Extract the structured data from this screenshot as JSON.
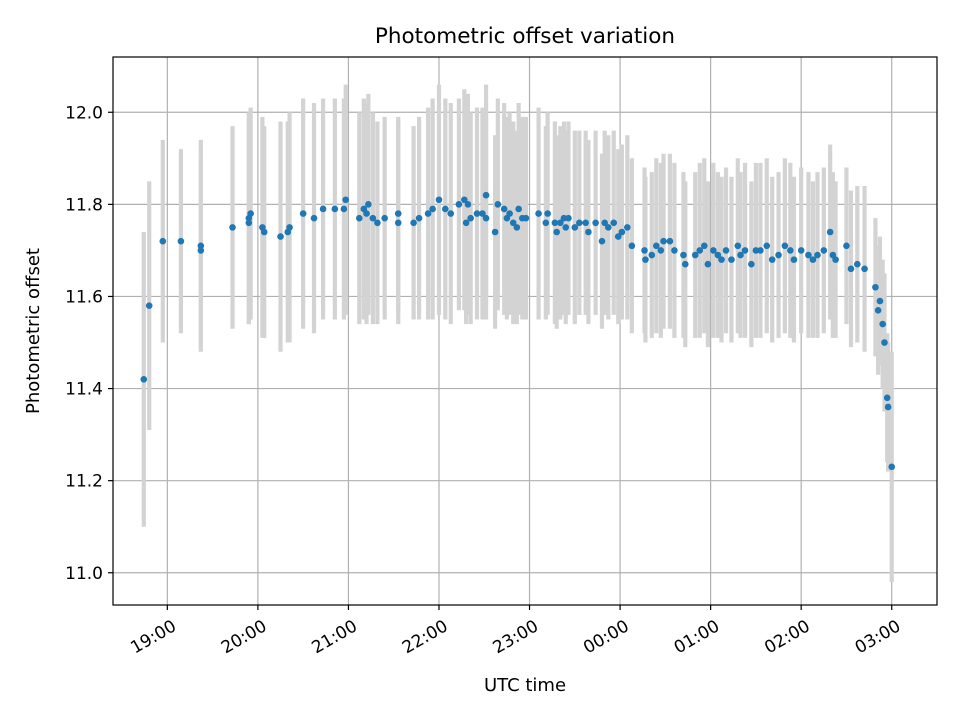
{
  "chart_data": {
    "type": "scatter",
    "title": "Photometric offset variation",
    "xlabel": "UTC time",
    "ylabel": "Photometric offset",
    "x_axis": {
      "unit": "hours since 18:00 UTC",
      "range": [
        0.4,
        9.5
      ],
      "ticks": [
        {
          "x": 1,
          "label": "19:00"
        },
        {
          "x": 2,
          "label": "20:00"
        },
        {
          "x": 3,
          "label": "21:00"
        },
        {
          "x": 4,
          "label": "22:00"
        },
        {
          "x": 5,
          "label": "23:00"
        },
        {
          "x": 6,
          "label": "00:00"
        },
        {
          "x": 7,
          "label": "01:00"
        },
        {
          "x": 8,
          "label": "02:00"
        },
        {
          "x": 9,
          "label": "03:00"
        }
      ]
    },
    "y_axis": {
      "range": [
        10.93,
        12.12
      ],
      "ticks": [
        {
          "y": 11.0,
          "label": "11.0"
        },
        {
          "y": 11.2,
          "label": "11.2"
        },
        {
          "y": 11.4,
          "label": "11.4"
        },
        {
          "y": 11.6,
          "label": "11.6"
        },
        {
          "y": 11.8,
          "label": "11.8"
        },
        {
          "y": 12.0,
          "label": "12.0"
        }
      ]
    },
    "grid": true,
    "colors": {
      "points": "#1f77b4",
      "errorbars": "#d3d3d3",
      "grid": "#b0b0b0"
    },
    "points": [
      {
        "x": 0.74,
        "y": 11.42,
        "err": 0.32
      },
      {
        "x": 0.8,
        "y": 11.58,
        "err": 0.27
      },
      {
        "x": 0.95,
        "y": 11.72,
        "err": 0.22
      },
      {
        "x": 1.15,
        "y": 11.72,
        "err": 0.2
      },
      {
        "x": 1.37,
        "y": 11.71,
        "err": 0.23
      },
      {
        "x": 1.37,
        "y": 11.7,
        "err": 0.2
      },
      {
        "x": 1.72,
        "y": 11.75,
        "err": 0.22
      },
      {
        "x": 1.9,
        "y": 11.77,
        "err": 0.23
      },
      {
        "x": 1.92,
        "y": 11.78,
        "err": 0.23
      },
      {
        "x": 1.9,
        "y": 11.76,
        "err": 0.22
      },
      {
        "x": 2.05,
        "y": 11.75,
        "err": 0.24
      },
      {
        "x": 2.07,
        "y": 11.74,
        "err": 0.23
      },
      {
        "x": 2.25,
        "y": 11.73,
        "err": 0.25
      },
      {
        "x": 2.33,
        "y": 11.74,
        "err": 0.24
      },
      {
        "x": 2.35,
        "y": 11.75,
        "err": 0.25
      },
      {
        "x": 2.5,
        "y": 11.78,
        "err": 0.25
      },
      {
        "x": 2.62,
        "y": 11.77,
        "err": 0.25
      },
      {
        "x": 2.72,
        "y": 11.79,
        "err": 0.24
      },
      {
        "x": 2.85,
        "y": 11.79,
        "err": 0.24
      },
      {
        "x": 2.97,
        "y": 11.81,
        "err": 0.25
      },
      {
        "x": 2.95,
        "y": 11.79,
        "err": 0.24
      },
      {
        "x": 3.12,
        "y": 11.77,
        "err": 0.23
      },
      {
        "x": 3.17,
        "y": 11.79,
        "err": 0.24
      },
      {
        "x": 3.22,
        "y": 11.8,
        "err": 0.24
      },
      {
        "x": 3.2,
        "y": 11.78,
        "err": 0.24
      },
      {
        "x": 3.27,
        "y": 11.77,
        "err": 0.23
      },
      {
        "x": 3.32,
        "y": 11.76,
        "err": 0.22
      },
      {
        "x": 3.4,
        "y": 11.77,
        "err": 0.22
      },
      {
        "x": 3.55,
        "y": 11.76,
        "err": 0.22
      },
      {
        "x": 3.55,
        "y": 11.78,
        "err": 0.21
      },
      {
        "x": 3.72,
        "y": 11.76,
        "err": 0.21
      },
      {
        "x": 3.78,
        "y": 11.77,
        "err": 0.22
      },
      {
        "x": 3.88,
        "y": 11.78,
        "err": 0.23
      },
      {
        "x": 3.93,
        "y": 11.79,
        "err": 0.24
      },
      {
        "x": 4.0,
        "y": 11.81,
        "err": 0.25
      },
      {
        "x": 4.07,
        "y": 11.79,
        "err": 0.24
      },
      {
        "x": 4.13,
        "y": 11.78,
        "err": 0.24
      },
      {
        "x": 4.22,
        "y": 11.8,
        "err": 0.23
      },
      {
        "x": 4.28,
        "y": 11.81,
        "err": 0.24
      },
      {
        "x": 4.32,
        "y": 11.8,
        "err": 0.24
      },
      {
        "x": 4.3,
        "y": 11.76,
        "err": 0.22
      },
      {
        "x": 4.35,
        "y": 11.77,
        "err": 0.23
      },
      {
        "x": 4.42,
        "y": 11.78,
        "err": 0.23
      },
      {
        "x": 4.48,
        "y": 11.78,
        "err": 0.23
      },
      {
        "x": 4.52,
        "y": 11.77,
        "err": 0.22
      },
      {
        "x": 4.52,
        "y": 11.82,
        "err": 0.24
      },
      {
        "x": 4.62,
        "y": 11.74,
        "err": 0.21
      },
      {
        "x": 4.65,
        "y": 11.8,
        "err": 0.23
      },
      {
        "x": 4.72,
        "y": 11.79,
        "err": 0.23
      },
      {
        "x": 4.75,
        "y": 11.77,
        "err": 0.22
      },
      {
        "x": 4.78,
        "y": 11.78,
        "err": 0.22
      },
      {
        "x": 4.82,
        "y": 11.76,
        "err": 0.22
      },
      {
        "x": 4.86,
        "y": 11.75,
        "err": 0.21
      },
      {
        "x": 4.88,
        "y": 11.79,
        "err": 0.23
      },
      {
        "x": 4.92,
        "y": 11.77,
        "err": 0.22
      },
      {
        "x": 4.96,
        "y": 11.77,
        "err": 0.22
      },
      {
        "x": 5.1,
        "y": 11.78,
        "err": 0.23
      },
      {
        "x": 5.18,
        "y": 11.76,
        "err": 0.21
      },
      {
        "x": 5.2,
        "y": 11.78,
        "err": 0.22
      },
      {
        "x": 5.28,
        "y": 11.76,
        "err": 0.22
      },
      {
        "x": 5.3,
        "y": 11.74,
        "err": 0.21
      },
      {
        "x": 5.34,
        "y": 11.76,
        "err": 0.21
      },
      {
        "x": 5.38,
        "y": 11.77,
        "err": 0.21
      },
      {
        "x": 5.4,
        "y": 11.75,
        "err": 0.21
      },
      {
        "x": 5.43,
        "y": 11.77,
        "err": 0.21
      },
      {
        "x": 5.5,
        "y": 11.75,
        "err": 0.21
      },
      {
        "x": 5.55,
        "y": 11.76,
        "err": 0.2
      },
      {
        "x": 5.62,
        "y": 11.76,
        "err": 0.2
      },
      {
        "x": 5.65,
        "y": 11.74,
        "err": 0.2
      },
      {
        "x": 5.73,
        "y": 11.76,
        "err": 0.2
      },
      {
        "x": 5.8,
        "y": 11.72,
        "err": 0.19
      },
      {
        "x": 5.83,
        "y": 11.76,
        "err": 0.2
      },
      {
        "x": 5.87,
        "y": 11.75,
        "err": 0.2
      },
      {
        "x": 5.93,
        "y": 11.76,
        "err": 0.2
      },
      {
        "x": 5.98,
        "y": 11.73,
        "err": 0.19
      },
      {
        "x": 6.02,
        "y": 11.74,
        "err": 0.19
      },
      {
        "x": 6.08,
        "y": 11.75,
        "err": 0.2
      },
      {
        "x": 6.13,
        "y": 11.71,
        "err": 0.19
      },
      {
        "x": 6.27,
        "y": 11.7,
        "err": 0.18
      },
      {
        "x": 6.28,
        "y": 11.68,
        "err": 0.18
      },
      {
        "x": 6.35,
        "y": 11.69,
        "err": 0.18
      },
      {
        "x": 6.4,
        "y": 11.71,
        "err": 0.19
      },
      {
        "x": 6.45,
        "y": 11.7,
        "err": 0.19
      },
      {
        "x": 6.48,
        "y": 11.72,
        "err": 0.19
      },
      {
        "x": 6.55,
        "y": 11.72,
        "err": 0.19
      },
      {
        "x": 6.6,
        "y": 11.7,
        "err": 0.19
      },
      {
        "x": 6.7,
        "y": 11.69,
        "err": 0.18
      },
      {
        "x": 6.72,
        "y": 11.67,
        "err": 0.18
      },
      {
        "x": 6.83,
        "y": 11.69,
        "err": 0.18
      },
      {
        "x": 6.88,
        "y": 11.7,
        "err": 0.19
      },
      {
        "x": 6.93,
        "y": 11.71,
        "err": 0.19
      },
      {
        "x": 6.97,
        "y": 11.67,
        "err": 0.18
      },
      {
        "x": 7.03,
        "y": 11.7,
        "err": 0.19
      },
      {
        "x": 7.08,
        "y": 11.69,
        "err": 0.18
      },
      {
        "x": 7.12,
        "y": 11.68,
        "err": 0.18
      },
      {
        "x": 7.17,
        "y": 11.7,
        "err": 0.18
      },
      {
        "x": 7.23,
        "y": 11.68,
        "err": 0.18
      },
      {
        "x": 7.3,
        "y": 11.71,
        "err": 0.19
      },
      {
        "x": 7.33,
        "y": 11.69,
        "err": 0.18
      },
      {
        "x": 7.38,
        "y": 11.7,
        "err": 0.19
      },
      {
        "x": 7.45,
        "y": 11.67,
        "err": 0.18
      },
      {
        "x": 7.5,
        "y": 11.7,
        "err": 0.19
      },
      {
        "x": 7.55,
        "y": 11.7,
        "err": 0.19
      },
      {
        "x": 7.62,
        "y": 11.71,
        "err": 0.19
      },
      {
        "x": 7.68,
        "y": 11.68,
        "err": 0.18
      },
      {
        "x": 7.75,
        "y": 11.69,
        "err": 0.18
      },
      {
        "x": 7.82,
        "y": 11.71,
        "err": 0.19
      },
      {
        "x": 7.88,
        "y": 11.7,
        "err": 0.19
      },
      {
        "x": 7.92,
        "y": 11.68,
        "err": 0.18
      },
      {
        "x": 8.0,
        "y": 11.7,
        "err": 0.18
      },
      {
        "x": 8.08,
        "y": 11.69,
        "err": 0.18
      },
      {
        "x": 8.13,
        "y": 11.68,
        "err": 0.17
      },
      {
        "x": 8.18,
        "y": 11.69,
        "err": 0.18
      },
      {
        "x": 8.25,
        "y": 11.7,
        "err": 0.18
      },
      {
        "x": 8.32,
        "y": 11.74,
        "err": 0.19
      },
      {
        "x": 8.35,
        "y": 11.69,
        "err": 0.18
      },
      {
        "x": 8.38,
        "y": 11.68,
        "err": 0.17
      },
      {
        "x": 8.5,
        "y": 11.71,
        "err": 0.17
      },
      {
        "x": 8.55,
        "y": 11.66,
        "err": 0.17
      },
      {
        "x": 8.62,
        "y": 11.67,
        "err": 0.17
      },
      {
        "x": 8.7,
        "y": 11.66,
        "err": 0.18
      },
      {
        "x": 8.82,
        "y": 11.62,
        "err": 0.15
      },
      {
        "x": 8.85,
        "y": 11.57,
        "err": 0.14
      },
      {
        "x": 8.87,
        "y": 11.59,
        "err": 0.14
      },
      {
        "x": 8.9,
        "y": 11.54,
        "err": 0.14
      },
      {
        "x": 8.92,
        "y": 11.5,
        "err": 0.15
      },
      {
        "x": 8.95,
        "y": 11.38,
        "err": 0.14
      },
      {
        "x": 8.96,
        "y": 11.36,
        "err": 0.14
      },
      {
        "x": 9.0,
        "y": 11.23,
        "err": 0.25
      }
    ]
  }
}
